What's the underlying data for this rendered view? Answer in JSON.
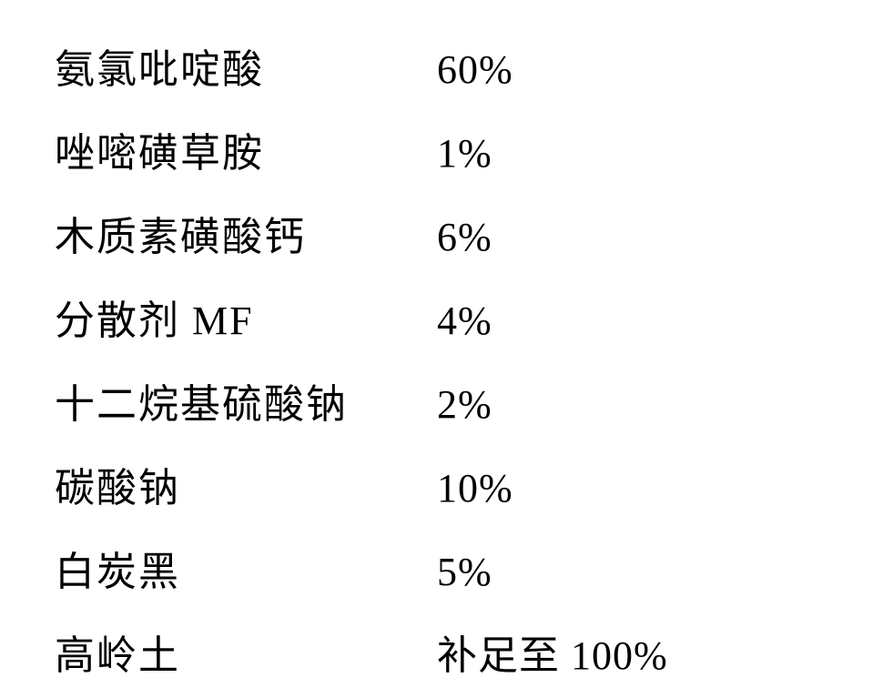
{
  "table": {
    "type": "table",
    "font_family": "SimSun",
    "font_size_pt": 33,
    "text_color": "#000000",
    "background_color": "#ffffff",
    "label_column_width": 420,
    "row_spacing": 28,
    "rows": [
      {
        "label": "氨氯吡啶酸",
        "value": "60%"
      },
      {
        "label": "唑嘧磺草胺",
        "value": "1%"
      },
      {
        "label": "木质素磺酸钙",
        "value": "6%"
      },
      {
        "label": "分散剂 MF",
        "value": " 4%"
      },
      {
        "label": "十二烷基硫酸钠",
        "value": "2%"
      },
      {
        "label": "碳酸钠",
        "value": "10%"
      },
      {
        "label": "白炭黑",
        "value": "5%"
      },
      {
        "label": "高岭土",
        "value": "补足至 100%"
      }
    ]
  }
}
